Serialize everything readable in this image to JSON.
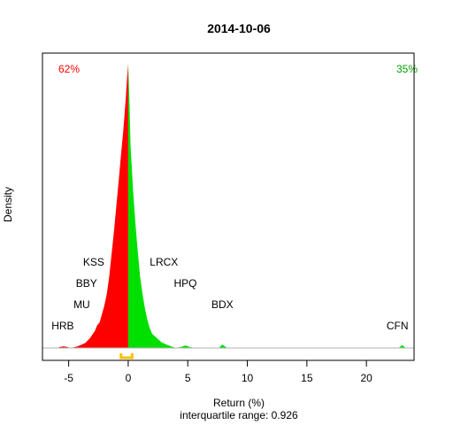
{
  "chart_data": {
    "type": "area",
    "title": "2014-10-06",
    "xlabel": "Return (%)",
    "ylabel": "Density",
    "subtitle": "interquartile range: 0.926",
    "xlim": [
      -7.2,
      24.0
    ],
    "x_ticks": [
      -5,
      0,
      5,
      10,
      15,
      20
    ],
    "negative_share": "62%",
    "positive_share": "35%",
    "colors": {
      "negative": "#ff0000",
      "positive": "#00e000",
      "iqr": "#ffc000",
      "baseline": "#b0b0b0"
    },
    "density_negative": [
      [
        -5.8,
        0.003
      ],
      [
        -5.4,
        0.006
      ],
      [
        -5.1,
        0.003
      ],
      [
        -4.8,
        0.0
      ],
      [
        -4.3,
        0.005
      ],
      [
        -4.0,
        0.01
      ],
      [
        -3.6,
        0.018
      ],
      [
        -3.2,
        0.035
      ],
      [
        -2.8,
        0.06
      ],
      [
        -2.6,
        0.08
      ],
      [
        -2.4,
        0.09
      ],
      [
        -2.2,
        0.12
      ],
      [
        -2.0,
        0.15
      ],
      [
        -1.8,
        0.19
      ],
      [
        -1.6,
        0.25
      ],
      [
        -1.4,
        0.33
      ],
      [
        -1.2,
        0.41
      ],
      [
        -1.0,
        0.5
      ],
      [
        -0.8,
        0.59
      ],
      [
        -0.6,
        0.68
      ],
      [
        -0.4,
        0.77
      ],
      [
        -0.2,
        0.88
      ],
      [
        -0.1,
        0.95
      ],
      [
        0.0,
        1.0
      ]
    ],
    "density_positive": [
      [
        0.0,
        1.0
      ],
      [
        0.1,
        0.87
      ],
      [
        0.2,
        0.71
      ],
      [
        0.4,
        0.56
      ],
      [
        0.6,
        0.44
      ],
      [
        0.8,
        0.34
      ],
      [
        1.0,
        0.25
      ],
      [
        1.2,
        0.19
      ],
      [
        1.4,
        0.14
      ],
      [
        1.6,
        0.1
      ],
      [
        1.8,
        0.07
      ],
      [
        2.0,
        0.05
      ],
      [
        2.4,
        0.035
      ],
      [
        2.8,
        0.02
      ],
      [
        3.2,
        0.012
      ],
      [
        3.6,
        0.006
      ],
      [
        4.0,
        0.0
      ],
      [
        4.4,
        0.003
      ],
      [
        4.8,
        0.009
      ],
      [
        5.2,
        0.003
      ],
      [
        5.6,
        0.0
      ],
      [
        7.6,
        0.0
      ],
      [
        7.9,
        0.012
      ],
      [
        8.3,
        0.0
      ],
      [
        22.7,
        0.0
      ],
      [
        23.0,
        0.01
      ],
      [
        23.3,
        0.0
      ]
    ],
    "iqr": [
      -0.6,
      0.33
    ],
    "annotations": [
      {
        "label": "HRB",
        "x": -5.5,
        "level": 0.065
      },
      {
        "label": "MU",
        "x": -3.9,
        "level": 0.14
      },
      {
        "label": "BBY",
        "x": -3.5,
        "level": 0.215
      },
      {
        "label": "KSS",
        "x": -2.9,
        "level": 0.29
      },
      {
        "label": "LRCX",
        "x": 3.0,
        "level": 0.29
      },
      {
        "label": "HPQ",
        "x": 4.8,
        "level": 0.215
      },
      {
        "label": "BDX",
        "x": 7.9,
        "level": 0.14
      },
      {
        "label": "CFN",
        "x": 22.6,
        "level": 0.065
      }
    ]
  }
}
